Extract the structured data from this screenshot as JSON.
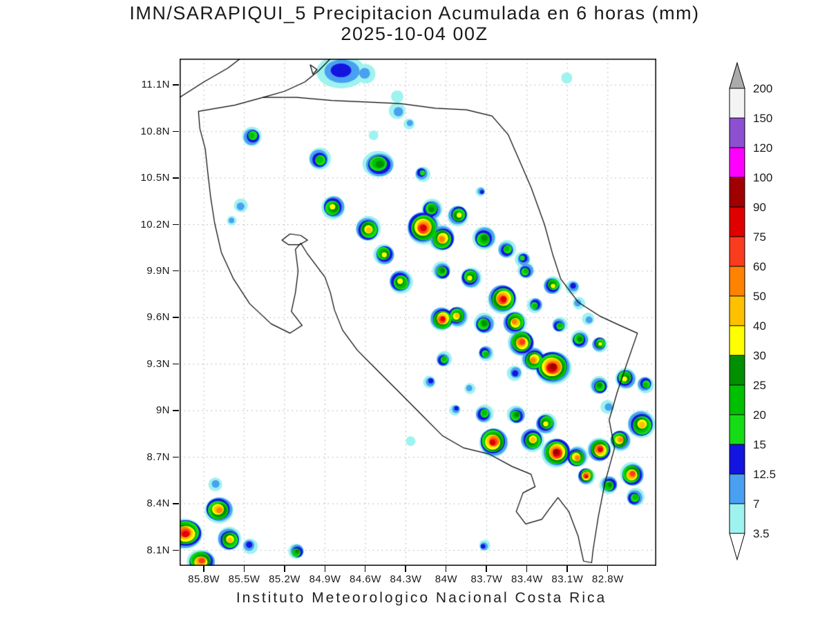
{
  "header": {
    "title_line1": "IMN/SARAPIQUI_5 Precipitacion Acumulada en 6 horas (mm)",
    "title_line2": "2025-10-04 00Z"
  },
  "footer": {
    "text": "Instituto Meteorologico Nacional Costa Rica"
  },
  "chart_data": {
    "type": "heatmap",
    "title": "IMN/SARAPIQUI_5 Precipitacion Acumulada en 6 horas (mm)",
    "subtitle": "2025-10-04 00Z",
    "units": "mm",
    "region": "Costa Rica",
    "grid": "dotted",
    "legend_position": "right",
    "lon_range_w": [
      85.98,
      82.44
    ],
    "lat_range": [
      8.0,
      11.27
    ],
    "lon_ticks_w": [
      85.8,
      85.5,
      85.2,
      84.9,
      84.6,
      84.3,
      84.0,
      83.7,
      83.4,
      83.1,
      82.8
    ],
    "lat_ticks": [
      11.1,
      10.8,
      10.5,
      10.2,
      9.9,
      9.6,
      9.3,
      9.0,
      8.7,
      8.4,
      8.1
    ],
    "xlabels": [
      "85.8W",
      "85.5W",
      "85.2W",
      "84.9W",
      "84.6W",
      "84.3W",
      "84W",
      "83.7W",
      "83.4W",
      "83.1W",
      "82.8W"
    ],
    "ylabels": [
      "11.1N",
      "10.8N",
      "10.5N",
      "10.2N",
      "9.9N",
      "9.6N",
      "9.3N",
      "9N",
      "8.7N",
      "8.4N",
      "8.1N"
    ],
    "levels": [
      3.5,
      7,
      12.5,
      15,
      20,
      25,
      30,
      40,
      50,
      60,
      75,
      90,
      100,
      120,
      150,
      200
    ],
    "level_colors": [
      "#9ef3ef",
      "#4aa0f0",
      "#1414e1",
      "#16dc16",
      "#00c000",
      "#008f00",
      "#ffff00",
      "#ffc000",
      "#ff8200",
      "#fa3c1e",
      "#e00000",
      "#a00000",
      "#ff00ff",
      "#8c50d0",
      "#f4f4f4"
    ],
    "under_color": "#ffffff",
    "over_color": "#ababab",
    "grid_color": "#aaaaaa",
    "coast_color": "#000000",
    "cells_format": [
      "lon_w",
      "lat",
      "peak_mm",
      "radius_px",
      "x_stretch"
    ],
    "cells": [
      [
        84.78,
        11.19,
        13,
        24,
        1.5
      ],
      [
        84.6,
        11.17,
        8,
        14,
        1
      ],
      [
        84.36,
        10.93,
        8,
        12,
        1
      ],
      [
        84.37,
        11.03,
        4,
        9,
        1
      ],
      [
        84.27,
        10.85,
        8,
        8,
        1
      ],
      [
        83.11,
        11.14,
        4,
        8,
        1
      ],
      [
        85.44,
        10.77,
        21,
        14,
        1
      ],
      [
        84.54,
        10.78,
        4,
        7,
        1
      ],
      [
        84.94,
        10.62,
        21,
        16,
        1
      ],
      [
        84.5,
        10.59,
        26,
        19,
        1.2
      ],
      [
        84.18,
        10.53,
        16,
        11,
        1
      ],
      [
        83.74,
        10.41,
        13,
        7,
        1
      ],
      [
        85.53,
        10.32,
        8,
        10,
        1
      ],
      [
        85.59,
        10.23,
        8,
        7,
        1
      ],
      [
        84.84,
        10.31,
        35,
        17,
        1
      ],
      [
        84.58,
        10.17,
        45,
        18,
        1
      ],
      [
        84.46,
        10.01,
        35,
        15,
        1
      ],
      [
        84.17,
        10.18,
        76,
        24,
        1
      ],
      [
        84.03,
        10.11,
        55,
        19,
        1
      ],
      [
        84.11,
        10.3,
        26,
        15,
        1
      ],
      [
        83.91,
        10.26,
        35,
        15,
        1
      ],
      [
        83.72,
        10.11,
        26,
        17,
        1
      ],
      [
        83.55,
        10.04,
        21,
        13,
        1
      ],
      [
        83.43,
        9.98,
        16,
        11,
        1
      ],
      [
        84.34,
        9.83,
        35,
        17,
        1
      ],
      [
        84.03,
        9.9,
        26,
        13,
        1
      ],
      [
        83.82,
        9.86,
        35,
        15,
        1
      ],
      [
        83.58,
        9.72,
        76,
        21,
        1
      ],
      [
        83.41,
        9.9,
        21,
        12,
        1
      ],
      [
        83.21,
        9.81,
        35,
        13,
        1
      ],
      [
        83.06,
        9.8,
        13,
        10,
        1
      ],
      [
        83.02,
        9.69,
        8,
        9,
        1
      ],
      [
        82.94,
        9.59,
        8,
        9,
        1
      ],
      [
        83.92,
        9.61,
        45,
        15,
        1
      ],
      [
        84.03,
        9.59,
        76,
        17,
        1
      ],
      [
        83.72,
        9.56,
        26,
        15,
        1
      ],
      [
        83.49,
        9.57,
        55,
        17,
        1
      ],
      [
        83.34,
        9.68,
        21,
        11,
        1
      ],
      [
        83.16,
        9.55,
        21,
        11,
        1
      ],
      [
        83.44,
        9.44,
        65,
        19,
        1
      ],
      [
        83.21,
        9.28,
        95,
        24,
        1.1
      ],
      [
        83.35,
        9.33,
        55,
        17,
        1
      ],
      [
        83.01,
        9.46,
        26,
        13,
        1
      ],
      [
        82.86,
        9.43,
        35,
        11,
        1
      ],
      [
        83.49,
        9.24,
        13,
        11,
        1
      ],
      [
        84.02,
        9.33,
        21,
        11,
        1
      ],
      [
        84.12,
        9.19,
        13,
        9,
        1
      ],
      [
        83.71,
        9.37,
        21,
        11,
        1
      ],
      [
        82.86,
        9.16,
        26,
        13,
        1
      ],
      [
        82.67,
        9.21,
        35,
        15,
        1
      ],
      [
        82.52,
        9.17,
        21,
        12,
        1
      ],
      [
        82.8,
        9.02,
        8,
        10,
        1
      ],
      [
        83.72,
        8.98,
        21,
        13,
        1
      ],
      [
        83.93,
        9.01,
        13,
        8,
        1
      ],
      [
        83.83,
        9.14,
        8,
        8,
        1
      ],
      [
        84.26,
        8.8,
        4,
        7,
        1
      ],
      [
        83.65,
        8.8,
        76,
        21,
        1
      ],
      [
        83.36,
        8.81,
        45,
        17,
        1
      ],
      [
        83.48,
        8.97,
        26,
        13,
        1
      ],
      [
        83.26,
        8.92,
        35,
        15,
        1
      ],
      [
        83.18,
        8.73,
        95,
        21,
        1
      ],
      [
        83.03,
        8.7,
        55,
        15,
        1
      ],
      [
        82.86,
        8.75,
        76,
        17,
        1
      ],
      [
        82.71,
        8.81,
        55,
        15,
        1
      ],
      [
        82.55,
        8.91,
        45,
        20,
        1
      ],
      [
        82.62,
        8.59,
        65,
        17,
        1
      ],
      [
        82.96,
        8.58,
        80,
        12,
        1
      ],
      [
        82.79,
        8.52,
        26,
        13,
        1
      ],
      [
        82.6,
        8.44,
        21,
        13,
        1
      ],
      [
        85.94,
        8.21,
        76,
        22,
        1.2
      ],
      [
        85.69,
        8.36,
        55,
        19,
        1.1
      ],
      [
        85.61,
        8.17,
        45,
        17,
        1
      ],
      [
        85.82,
        8.03,
        65,
        17,
        1.2
      ],
      [
        85.46,
        8.13,
        13,
        11,
        1
      ],
      [
        85.11,
        8.09,
        26,
        11,
        1
      ],
      [
        83.72,
        8.13,
        13,
        8,
        1
      ],
      [
        85.71,
        8.53,
        8,
        10,
        1
      ]
    ],
    "coastlines": [
      {
        "name": "costa-rica-mainland",
        "closed": true,
        "pts": [
          [
            85.84,
            10.93
          ],
          [
            85.57,
            10.97
          ],
          [
            85.36,
            11.02
          ],
          [
            85.11,
            11.02
          ],
          [
            84.85,
            11.0
          ],
          [
            84.59,
            10.99
          ],
          [
            84.34,
            10.98
          ],
          [
            84.08,
            10.95
          ],
          [
            83.85,
            10.94
          ],
          [
            83.66,
            10.9
          ],
          [
            83.54,
            10.78
          ],
          [
            83.46,
            10.62
          ],
          [
            83.37,
            10.44
          ],
          [
            83.27,
            10.2
          ],
          [
            83.21,
            10.01
          ],
          [
            83.15,
            9.85
          ],
          [
            83.02,
            9.7
          ],
          [
            82.86,
            9.61
          ],
          [
            82.71,
            9.55
          ],
          [
            82.58,
            9.5
          ],
          [
            82.66,
            9.3
          ],
          [
            82.73,
            9.12
          ],
          [
            82.79,
            8.94
          ],
          [
            82.75,
            8.76
          ],
          [
            82.82,
            8.54
          ],
          [
            82.87,
            8.32
          ],
          [
            82.91,
            8.1
          ],
          [
            82.92,
            8.02
          ],
          [
            82.98,
            8.03
          ],
          [
            83.02,
            8.19
          ],
          [
            83.09,
            8.35
          ],
          [
            83.17,
            8.44
          ],
          [
            83.24,
            8.36
          ],
          [
            83.29,
            8.3
          ],
          [
            83.41,
            8.27
          ],
          [
            83.48,
            8.35
          ],
          [
            83.43,
            8.47
          ],
          [
            83.34,
            8.51
          ],
          [
            83.37,
            8.59
          ],
          [
            83.51,
            8.64
          ],
          [
            83.68,
            8.72
          ],
          [
            83.87,
            8.76
          ],
          [
            84.03,
            8.84
          ],
          [
            84.19,
            8.98
          ],
          [
            84.35,
            9.12
          ],
          [
            84.5,
            9.25
          ],
          [
            84.66,
            9.39
          ],
          [
            84.77,
            9.52
          ],
          [
            84.83,
            9.65
          ],
          [
            84.86,
            9.76
          ],
          [
            84.9,
            9.86
          ],
          [
            84.96,
            9.93
          ],
          [
            85.03,
            10.01
          ],
          [
            85.08,
            10.08
          ],
          [
            85.12,
            10.04
          ],
          [
            85.1,
            9.9
          ],
          [
            85.12,
            9.76
          ],
          [
            85.15,
            9.64
          ],
          [
            85.07,
            9.55
          ],
          [
            85.16,
            9.5
          ],
          [
            85.3,
            9.56
          ],
          [
            85.46,
            9.69
          ],
          [
            85.58,
            9.85
          ],
          [
            85.67,
            10.02
          ],
          [
            85.72,
            10.21
          ],
          [
            85.75,
            10.38
          ],
          [
            85.77,
            10.53
          ],
          [
            85.79,
            10.69
          ],
          [
            85.83,
            10.82
          ]
        ]
      },
      {
        "name": "lake-nicaragua-west-shore",
        "closed": false,
        "pts": [
          [
            85.98,
            11.02
          ],
          [
            85.8,
            11.12
          ],
          [
            85.62,
            11.21
          ],
          [
            85.53,
            11.27
          ]
        ]
      },
      {
        "name": "lake-nicaragua-southeast-shore",
        "closed": false,
        "pts": [
          [
            85.36,
            11.02
          ],
          [
            85.2,
            11.06
          ],
          [
            85.05,
            11.12
          ],
          [
            84.95,
            11.19
          ],
          [
            84.86,
            11.27
          ]
        ]
      },
      {
        "name": "lake-island",
        "closed": true,
        "pts": [
          [
            84.96,
            11.2
          ],
          [
            85.01,
            11.23
          ],
          [
            84.99,
            11.17
          ]
        ]
      },
      {
        "name": "inland-lake",
        "closed": true,
        "pts": [
          [
            85.22,
            10.1
          ],
          [
            85.16,
            10.14
          ],
          [
            85.08,
            10.13
          ],
          [
            85.03,
            10.1
          ],
          [
            85.09,
            10.07
          ],
          [
            85.17,
            10.07
          ]
        ]
      }
    ]
  }
}
